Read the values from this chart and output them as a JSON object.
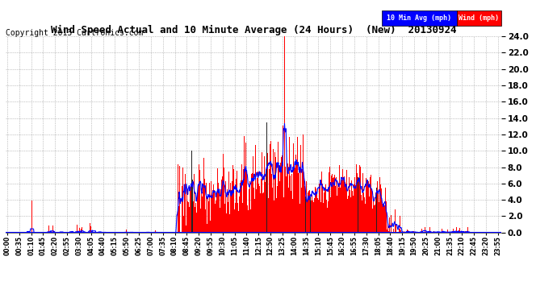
{
  "title": "Wind Speed Actual and 10 Minute Average (24 Hours)  (New)  20130924",
  "copyright": "Copyright 2013 Cartronics.com",
  "legend_labels": [
    "10 Min Avg (mph)",
    "Wind (mph)"
  ],
  "ylim": [
    0.0,
    24.0
  ],
  "yticks": [
    0.0,
    2.0,
    4.0,
    6.0,
    8.0,
    10.0,
    12.0,
    14.0,
    16.0,
    18.0,
    20.0,
    22.0,
    24.0
  ],
  "wind_color": "#ff0000",
  "dark_spike_color": "#222222",
  "avg_color": "#0000ff",
  "baseline_color": "#0000ff",
  "bg_color": "#ffffff",
  "grid_color": "#999999",
  "title_fontsize": 10,
  "copyright_fontsize": 7
}
